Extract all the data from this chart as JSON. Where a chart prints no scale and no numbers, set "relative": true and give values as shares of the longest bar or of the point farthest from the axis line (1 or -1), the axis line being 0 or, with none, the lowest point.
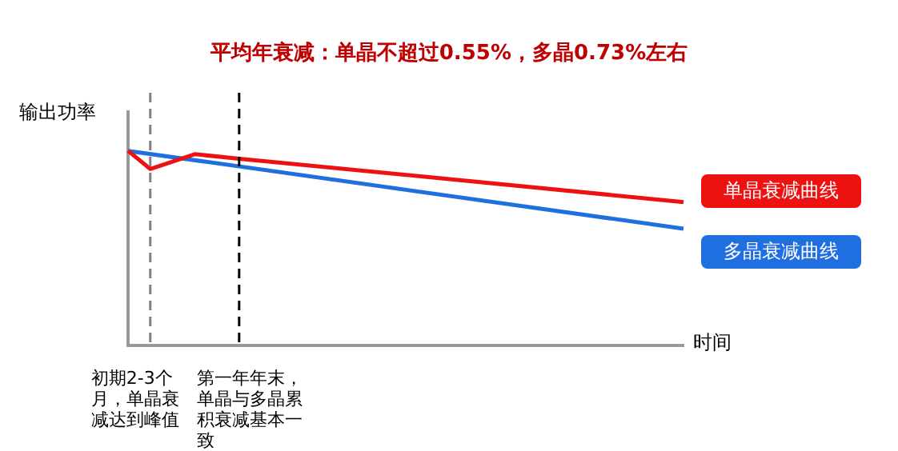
{
  "chart_data": {
    "type": "line",
    "title": "平均年衰减：单晶不超过0.55%，多晶0.73%左右",
    "xlabel": "时间",
    "ylabel": "输出功率",
    "relative": true,
    "legend": "right",
    "marker": "none",
    "categories": [
      null,
      null,
      null,
      null,
      null,
      null,
      null,
      null,
      null,
      null,
      null,
      null,
      null,
      null,
      null,
      null,
      null,
      null,
      null,
      null,
      null,
      null,
      null,
      null,
      null,
      null
    ],
    "series": [
      {
        "name": "单晶衰减曲线",
        "color": "#ee1111",
        "values": [
          1,
          0.907,
          null,
          0.983,
          null,
          0.96,
          null,
          null,
          null,
          null,
          null,
          null,
          null,
          null,
          null,
          null,
          null,
          null,
          null,
          null,
          null,
          null,
          null,
          null,
          null,
          0.737
        ]
      },
      {
        "name": "多晶衰减曲线",
        "color": "#1f6fe0",
        "values": [
          1,
          null,
          null,
          null,
          null,
          null,
          null,
          null,
          null,
          null,
          null,
          null,
          null,
          null,
          null,
          null,
          null,
          null,
          null,
          null,
          null,
          null,
          null,
          null,
          null,
          0.6
        ]
      }
    ],
    "annotations": [
      "初期2-3个月，单晶衰减达到峰值",
      "第一年年末，单晶与多晶累积衰减基本一致"
    ]
  }
}
